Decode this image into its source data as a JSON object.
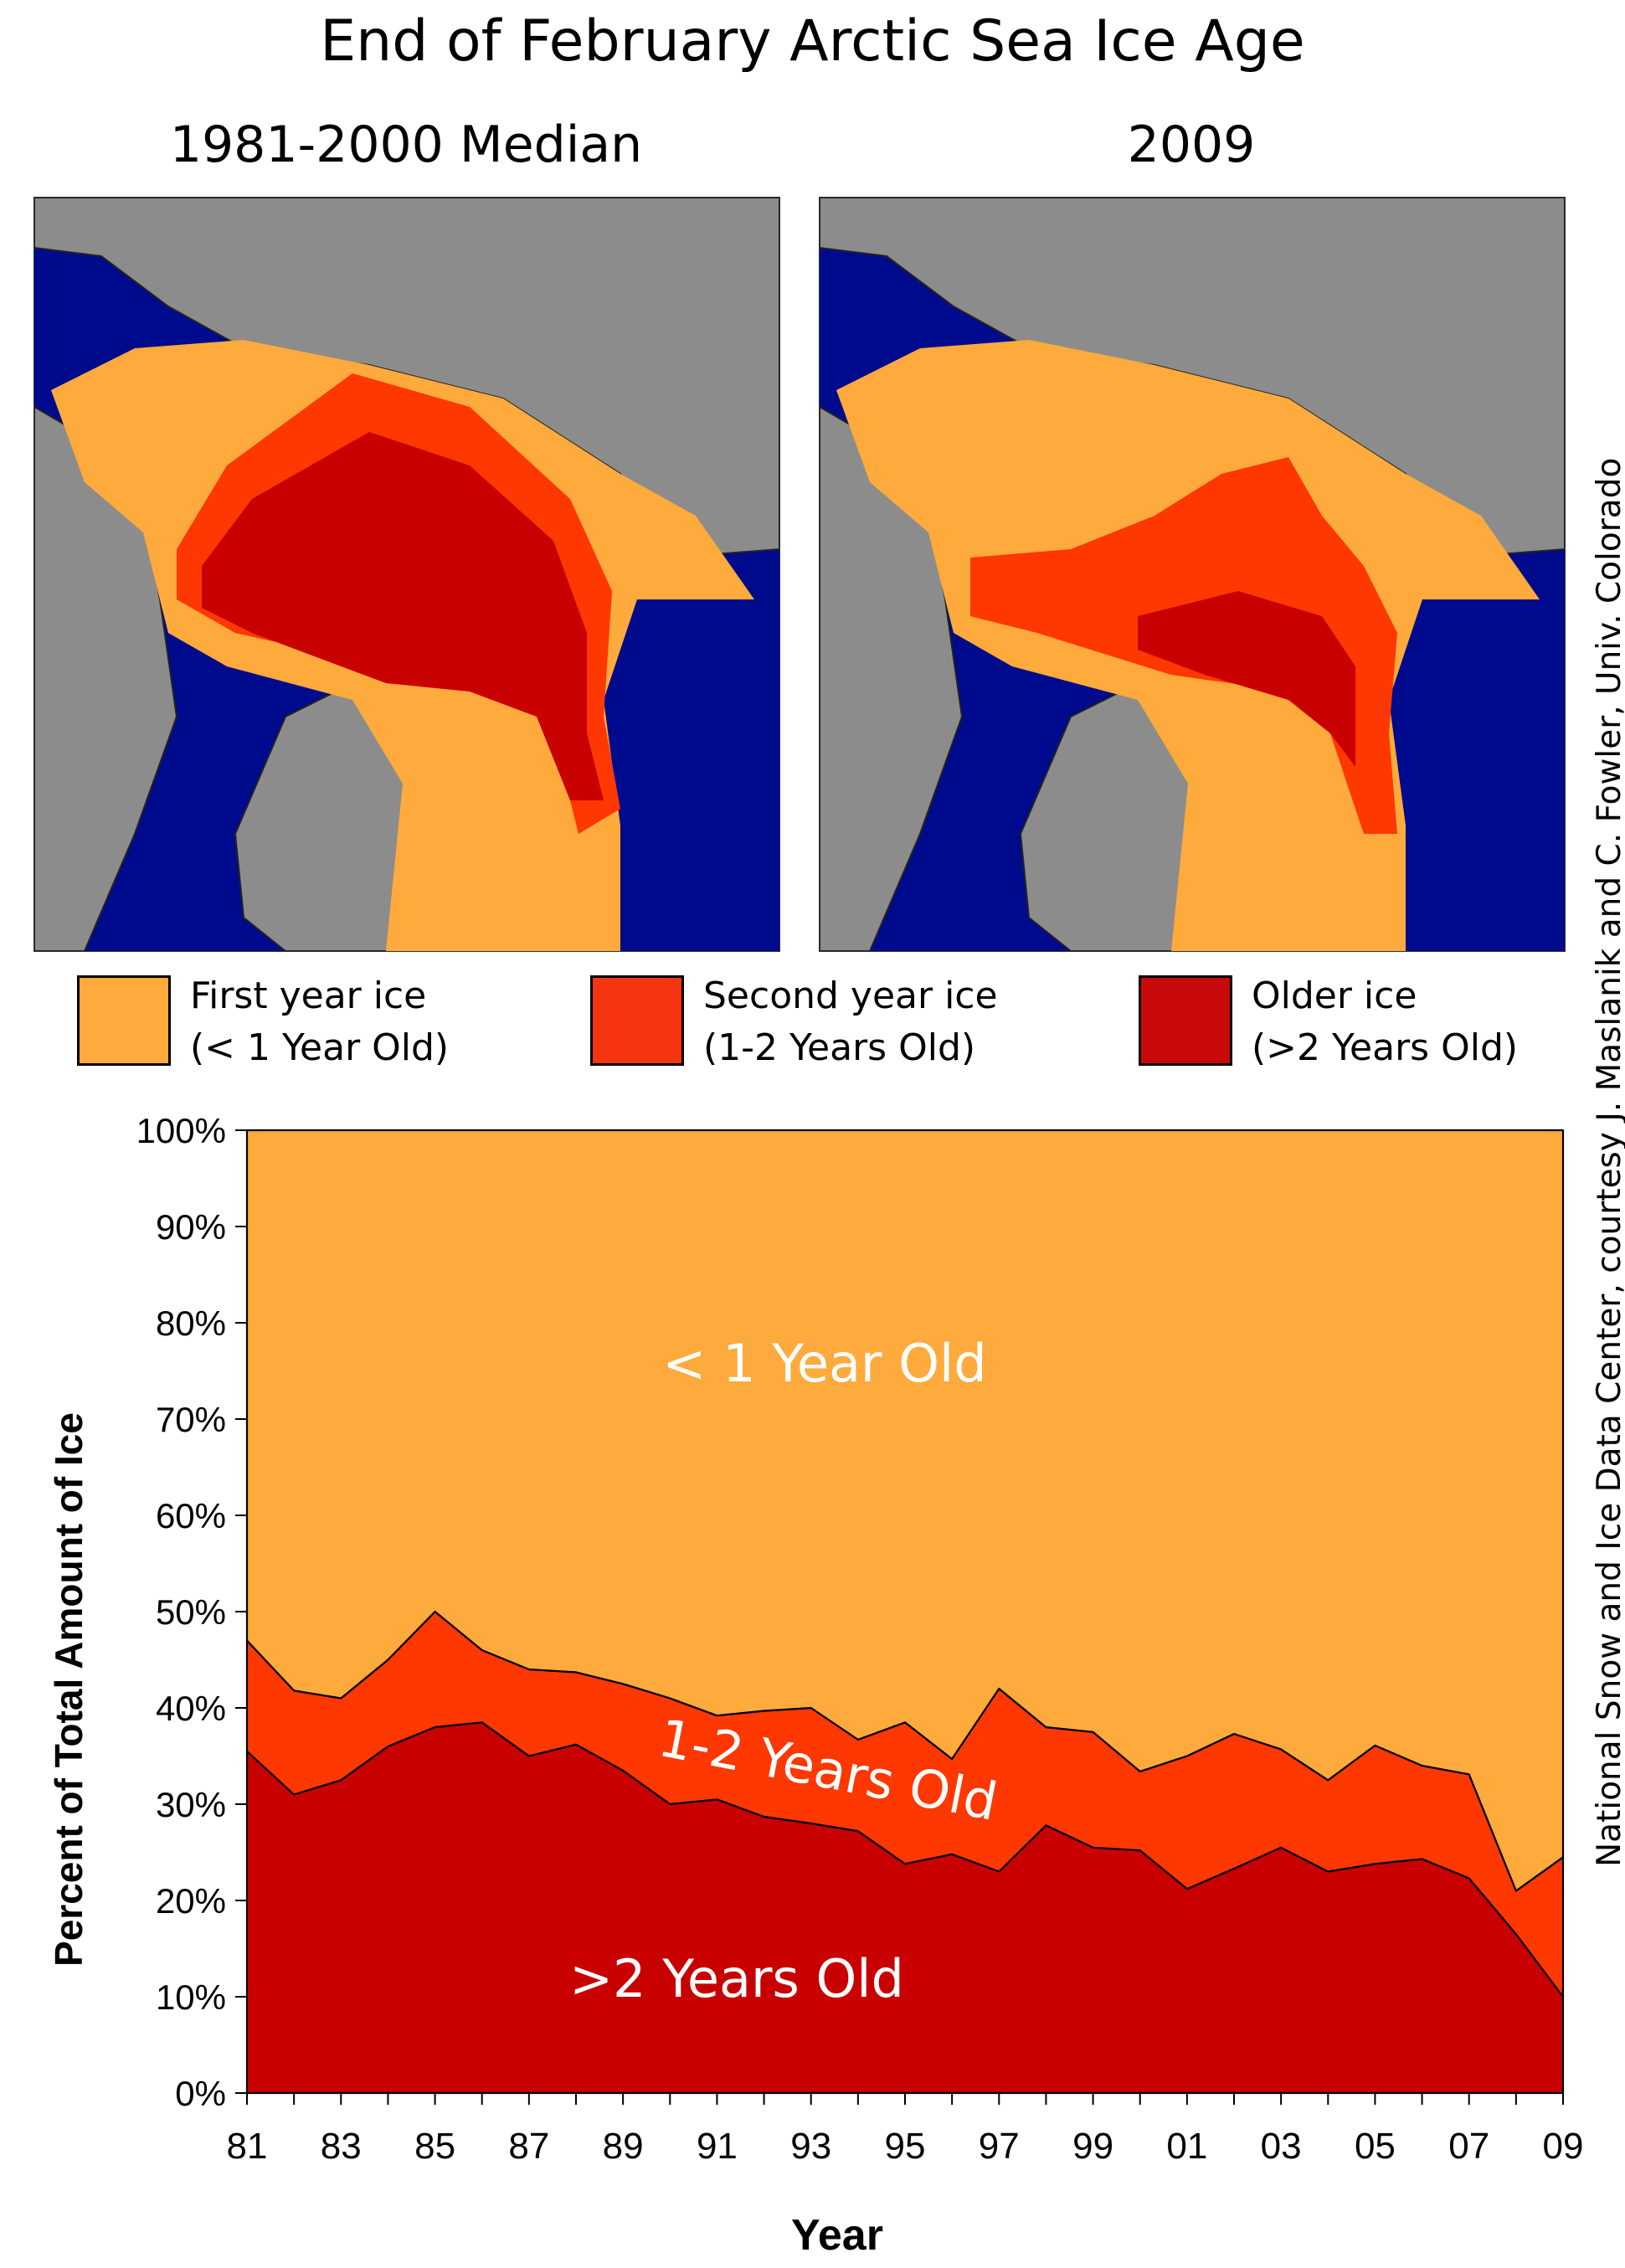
{
  "header": {
    "title": "End of February Arctic Sea Ice Age",
    "map_left_title": "1981-2000 Median",
    "map_right_title": "2009"
  },
  "legend": [
    {
      "label": "First year ice",
      "sub": "(< 1 Year Old)",
      "color": "#ffaa3c"
    },
    {
      "label": "Second year ice",
      "sub": "(1-2 Years Old)",
      "color": "#f5350f"
    },
    {
      "label": "Older ice",
      "sub": "(>2 Years Old)",
      "color": "#c80a0a"
    }
  ],
  "credit": "National Snow and Ice Data Center, courtesy J. Maslanik and C. Fowler, Univ. Colorado",
  "colors": {
    "first_year": "#ffaa3c",
    "second_year": "#ff3700",
    "older": "#c80000",
    "ocean": "#000a8c",
    "land": "#8c8c8c"
  },
  "chart_data": {
    "type": "area",
    "stacked": true,
    "x": [
      1981,
      1982,
      1983,
      1984,
      1985,
      1986,
      1987,
      1988,
      1989,
      1990,
      1991,
      1992,
      1993,
      1994,
      1995,
      1996,
      1997,
      1998,
      1999,
      2000,
      2001,
      2002,
      2003,
      2004,
      2005,
      2006,
      2007,
      2008,
      2009
    ],
    "xtick_labels": [
      "81",
      "83",
      "85",
      "87",
      "89",
      "91",
      "93",
      "95",
      "97",
      "99",
      "01",
      "03",
      "05",
      "07",
      "09"
    ],
    "xlabel": "Year",
    "ylabel": "Percent of Total Amount of Ice",
    "ylim": [
      0,
      100
    ],
    "ytick_labels": [
      "0%",
      "10%",
      "20%",
      "30%",
      "40%",
      "50%",
      "60%",
      "70%",
      "80%",
      "90%",
      "100%"
    ],
    "series": [
      {
        "name": ">2 Years Old",
        "values": [
          35.5,
          31.0,
          32.5,
          36.0,
          38.0,
          38.5,
          35.0,
          36.2,
          33.5,
          30.0,
          30.5,
          28.7,
          28.0,
          27.2,
          23.8,
          24.8,
          23.0,
          27.8,
          25.5,
          25.2,
          21.2,
          23.3,
          25.5,
          23.0,
          23.8,
          24.3,
          22.3,
          16.5,
          10.0
        ]
      },
      {
        "name": "1-2 Years Old",
        "values": [
          11.5,
          10.8,
          8.5,
          9.0,
          12.0,
          7.5,
          9.0,
          7.5,
          9.0,
          11.0,
          8.7,
          11.0,
          12.0,
          9.5,
          14.7,
          9.9,
          19.0,
          10.2,
          12.0,
          8.2,
          13.8,
          14.0,
          10.2,
          9.5,
          12.3,
          9.7,
          10.8,
          4.5,
          14.5
        ]
      },
      {
        "name": "< 1 Year Old",
        "values": [
          53.0,
          58.2,
          59.0,
          55.0,
          50.0,
          54.0,
          56.0,
          56.3,
          57.5,
          59.0,
          60.8,
          60.3,
          60.0,
          63.3,
          61.5,
          65.3,
          58.0,
          62.0,
          62.5,
          66.6,
          65.0,
          62.7,
          64.3,
          67.5,
          63.9,
          66.0,
          66.9,
          79.0,
          75.5
        ]
      }
    ]
  }
}
